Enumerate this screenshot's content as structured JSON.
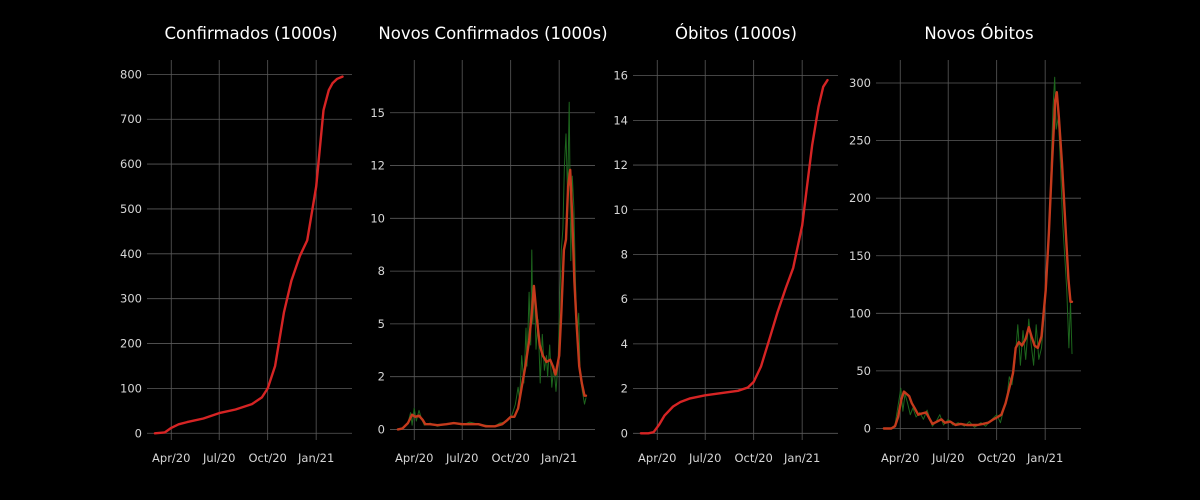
{
  "colors": {
    "background": "#000000",
    "grid": "#5a5a5a",
    "text": "#d6d6d6",
    "title": "#ffffff",
    "cumulative_line": "#d62424",
    "raw_daily": "#1f6b1f",
    "smoothed_daily": "#c43a1c"
  },
  "chart_data": [
    {
      "type": "line",
      "title": "Confirmados (1000s)",
      "xlabel": "",
      "ylabel": "",
      "grid": true,
      "x_ticks": [
        "Apr/20",
        "Jul/20",
        "Oct/20",
        "Jan/21"
      ],
      "y_ticks": [
        "0",
        "100",
        "200",
        "300",
        "400",
        "500",
        "600",
        "700",
        "800"
      ],
      "ylim": [
        -15,
        832
      ],
      "series": [
        {
          "x": [
            "2020-03-01",
            "2020-03-20",
            "2020-04-01",
            "2020-04-15",
            "2020-05-01",
            "2020-06-01",
            "2020-07-01",
            "2020-08-01",
            "2020-09-01",
            "2020-09-20",
            "2020-10-01",
            "2020-10-15",
            "2020-11-01",
            "2020-11-15",
            "2020-12-01",
            "2020-12-15",
            "2021-01-01",
            "2021-01-15",
            "2021-01-25",
            "2021-02-01",
            "2021-02-10",
            "2021-02-20"
          ],
          "y": [
            0,
            2,
            12,
            20,
            25,
            33,
            45,
            53,
            65,
            80,
            100,
            150,
            270,
            340,
            395,
            430,
            550,
            720,
            765,
            780,
            790,
            795
          ]
        }
      ]
    },
    {
      "type": "line",
      "title": "Novos Confirmados (1000s)",
      "xlabel": "",
      "ylabel": "",
      "grid": true,
      "x_ticks": [
        "Apr/20",
        "Jul/20",
        "Oct/20",
        "Jan/21"
      ],
      "y_ticks": [
        "0",
        "2",
        "5",
        "8",
        "10",
        "12",
        "15"
      ],
      "y_tick_values": [
        0,
        2.5,
        5,
        7.5,
        10,
        12.5,
        15
      ],
      "ylim": [
        -0.5,
        17.5
      ],
      "series": [
        {
          "style": "raw",
          "x": [
            "2020-03-01",
            "2020-03-10",
            "2020-03-20",
            "2020-03-25",
            "2020-03-28",
            "2020-04-01",
            "2020-04-05",
            "2020-04-10",
            "2020-04-15",
            "2020-04-20",
            "2020-05-01",
            "2020-05-15",
            "2020-06-01",
            "2020-06-15",
            "2020-07-01",
            "2020-07-15",
            "2020-08-01",
            "2020-08-15",
            "2020-09-01",
            "2020-09-10",
            "2020-09-20",
            "2020-09-25",
            "2020-10-01",
            "2020-10-05",
            "2020-10-10",
            "2020-10-15",
            "2020-10-18",
            "2020-10-22",
            "2020-10-26",
            "2020-10-30",
            "2020-11-01",
            "2020-11-05",
            "2020-11-08",
            "2020-11-10",
            "2020-11-12",
            "2020-11-15",
            "2020-11-18",
            "2020-11-22",
            "2020-11-26",
            "2020-11-30",
            "2020-12-04",
            "2020-12-08",
            "2020-12-10",
            "2020-12-14",
            "2020-12-18",
            "2020-12-22",
            "2020-12-26",
            "2020-12-30",
            "2021-01-02",
            "2021-01-05",
            "2021-01-08",
            "2021-01-11",
            "2021-01-14",
            "2021-01-17",
            "2021-01-20",
            "2021-01-23",
            "2021-01-26",
            "2021-01-29",
            "2021-02-01",
            "2021-02-04",
            "2021-02-07",
            "2021-02-10",
            "2021-02-14",
            "2021-02-18",
            "2021-02-21"
          ],
          "y": [
            0,
            0.05,
            0.3,
            0.8,
            0.2,
            1.0,
            0.4,
            0.9,
            0.5,
            0.2,
            0.3,
            0.15,
            0.25,
            0.3,
            0.2,
            0.35,
            0.25,
            0.2,
            0.15,
            0.3,
            0.35,
            0.5,
            0.55,
            0.8,
            1.2,
            2.0,
            1.4,
            3.5,
            2.2,
            4.8,
            3.0,
            6.5,
            4.0,
            8.5,
            5.0,
            6.8,
            3.8,
            5.2,
            2.2,
            4.5,
            2.8,
            3.5,
            2.5,
            4.0,
            2.0,
            3.0,
            1.8,
            3.2,
            6.0,
            8.5,
            9.5,
            12.5,
            14.0,
            11.0,
            15.5,
            8.0,
            12.0,
            10.5,
            7.0,
            4.5,
            5.5,
            2.5,
            1.8,
            1.2,
            1.5
          ]
        },
        {
          "style": "smoothed",
          "x": [
            "2020-03-01",
            "2020-03-10",
            "2020-03-20",
            "2020-03-28",
            "2020-04-03",
            "2020-04-10",
            "2020-04-17",
            "2020-04-22",
            "2020-05-01",
            "2020-05-15",
            "2020-06-01",
            "2020-06-15",
            "2020-07-01",
            "2020-07-15",
            "2020-08-01",
            "2020-08-15",
            "2020-09-01",
            "2020-09-15",
            "2020-09-25",
            "2020-10-01",
            "2020-10-08",
            "2020-10-15",
            "2020-10-22",
            "2020-10-29",
            "2020-11-05",
            "2020-11-10",
            "2020-11-14",
            "2020-11-20",
            "2020-11-25",
            "2020-12-01",
            "2020-12-08",
            "2020-12-15",
            "2020-12-20",
            "2020-12-25",
            "2021-01-01",
            "2021-01-05",
            "2021-01-10",
            "2021-01-14",
            "2021-01-18",
            "2021-01-22",
            "2021-01-26",
            "2021-01-30",
            "2021-02-03",
            "2021-02-08",
            "2021-02-13",
            "2021-02-18",
            "2021-02-21"
          ],
          "y": [
            0,
            0.05,
            0.3,
            0.7,
            0.6,
            0.65,
            0.45,
            0.25,
            0.25,
            0.2,
            0.25,
            0.3,
            0.25,
            0.25,
            0.25,
            0.15,
            0.15,
            0.25,
            0.45,
            0.6,
            0.6,
            1.0,
            2.0,
            3.0,
            4.2,
            5.5,
            6.8,
            5.2,
            4.0,
            3.5,
            3.2,
            3.3,
            3.0,
            2.6,
            3.5,
            5.5,
            8.5,
            9.0,
            11.5,
            12.3,
            10.0,
            7.0,
            5.0,
            3.0,
            2.2,
            1.6,
            1.6
          ]
        }
      ]
    },
    {
      "type": "line",
      "title": "Óbitos (1000s)",
      "xlabel": "",
      "ylabel": "",
      "grid": true,
      "x_ticks": [
        "Apr/20",
        "Jul/20",
        "Oct/20",
        "Jan/21"
      ],
      "y_ticks": [
        "0",
        "2",
        "4",
        "6",
        "8",
        "10",
        "12",
        "14",
        "16"
      ],
      "ylim": [
        -0.3,
        16.7
      ],
      "series": [
        {
          "x": [
            "2020-03-01",
            "2020-03-15",
            "2020-03-25",
            "2020-04-05",
            "2020-04-15",
            "2020-05-01",
            "2020-05-15",
            "2020-06-01",
            "2020-07-01",
            "2020-08-01",
            "2020-09-01",
            "2020-09-20",
            "2020-10-01",
            "2020-10-15",
            "2020-11-01",
            "2020-11-15",
            "2020-12-01",
            "2020-12-15",
            "2021-01-01",
            "2021-01-10",
            "2021-01-20",
            "2021-02-01",
            "2021-02-10",
            "2021-02-18"
          ],
          "y": [
            0,
            0,
            0.05,
            0.4,
            0.8,
            1.2,
            1.4,
            1.55,
            1.7,
            1.8,
            1.9,
            2.05,
            2.3,
            3.0,
            4.3,
            5.4,
            6.5,
            7.4,
            9.3,
            11.0,
            12.9,
            14.6,
            15.5,
            15.8
          ]
        }
      ]
    },
    {
      "type": "line",
      "title": "Novos Óbitos",
      "xlabel": "",
      "ylabel": "",
      "grid": true,
      "x_ticks": [
        "Apr/20",
        "Jul/20",
        "Oct/20",
        "Jan/21"
      ],
      "y_ticks": [
        "0",
        "50",
        "100",
        "150",
        "200",
        "250",
        "300"
      ],
      "ylim": [
        -10,
        320
      ],
      "series": [
        {
          "style": "raw",
          "x": [
            "2020-03-01",
            "2020-03-15",
            "2020-03-22",
            "2020-03-28",
            "2020-04-02",
            "2020-04-06",
            "2020-04-10",
            "2020-04-15",
            "2020-04-20",
            "2020-04-25",
            "2020-05-01",
            "2020-05-08",
            "2020-05-15",
            "2020-05-22",
            "2020-06-01",
            "2020-06-08",
            "2020-06-15",
            "2020-06-22",
            "2020-07-01",
            "2020-07-10",
            "2020-07-20",
            "2020-08-01",
            "2020-08-10",
            "2020-08-20",
            "2020-09-01",
            "2020-09-10",
            "2020-09-20",
            "2020-10-01",
            "2020-10-08",
            "2020-10-15",
            "2020-10-20",
            "2020-10-25",
            "2020-10-30",
            "2020-11-05",
            "2020-11-10",
            "2020-11-15",
            "2020-11-20",
            "2020-11-25",
            "2020-12-01",
            "2020-12-05",
            "2020-12-10",
            "2020-12-15",
            "2020-12-20",
            "2020-12-25",
            "2021-01-01",
            "2021-01-05",
            "2021-01-10",
            "2021-01-13",
            "2021-01-16",
            "2021-01-19",
            "2021-01-22",
            "2021-01-26",
            "2021-01-30",
            "2021-02-03",
            "2021-02-07",
            "2021-02-11",
            "2021-02-15",
            "2021-02-18",
            "2021-02-21"
          ],
          "y": [
            0,
            0,
            3,
            20,
            35,
            15,
            30,
            22,
            12,
            18,
            10,
            14,
            8,
            16,
            2,
            6,
            12,
            3,
            8,
            3,
            5,
            2,
            6,
            1,
            5,
            2,
            7,
            12,
            5,
            18,
            25,
            45,
            38,
            60,
            90,
            55,
            85,
            60,
            95,
            75,
            55,
            90,
            60,
            70,
            110,
            150,
            190,
            240,
            280,
            305,
            260,
            270,
            230,
            180,
            150,
            120,
            70,
            110,
            65
          ]
        },
        {
          "style": "smoothed",
          "x": [
            "2020-03-01",
            "2020-03-15",
            "2020-03-22",
            "2020-03-28",
            "2020-04-03",
            "2020-04-08",
            "2020-04-13",
            "2020-04-18",
            "2020-04-23",
            "2020-04-28",
            "2020-05-05",
            "2020-05-12",
            "2020-05-20",
            "2020-06-01",
            "2020-06-10",
            "2020-06-18",
            "2020-06-25",
            "2020-07-05",
            "2020-07-15",
            "2020-07-25",
            "2020-08-05",
            "2020-08-15",
            "2020-08-25",
            "2020-09-05",
            "2020-09-15",
            "2020-09-25",
            "2020-10-03",
            "2020-10-10",
            "2020-10-18",
            "2020-10-25",
            "2020-11-01",
            "2020-11-06",
            "2020-11-12",
            "2020-11-18",
            "2020-11-25",
            "2020-12-01",
            "2020-12-06",
            "2020-12-12",
            "2020-12-18",
            "2020-12-25",
            "2021-01-02",
            "2021-01-08",
            "2021-01-14",
            "2021-01-20",
            "2021-01-23",
            "2021-01-27",
            "2021-02-02",
            "2021-02-08",
            "2021-02-14",
            "2021-02-18",
            "2021-02-21"
          ],
          "y": [
            0,
            0,
            2,
            10,
            25,
            32,
            30,
            28,
            22,
            18,
            12,
            13,
            14,
            4,
            6,
            8,
            5,
            6,
            3,
            4,
            3,
            3,
            3,
            4,
            5,
            8,
            10,
            12,
            22,
            35,
            48,
            70,
            75,
            72,
            78,
            88,
            80,
            72,
            70,
            80,
            120,
            170,
            230,
            285,
            292,
            270,
            230,
            180,
            130,
            110,
            110
          ]
        }
      ]
    }
  ]
}
